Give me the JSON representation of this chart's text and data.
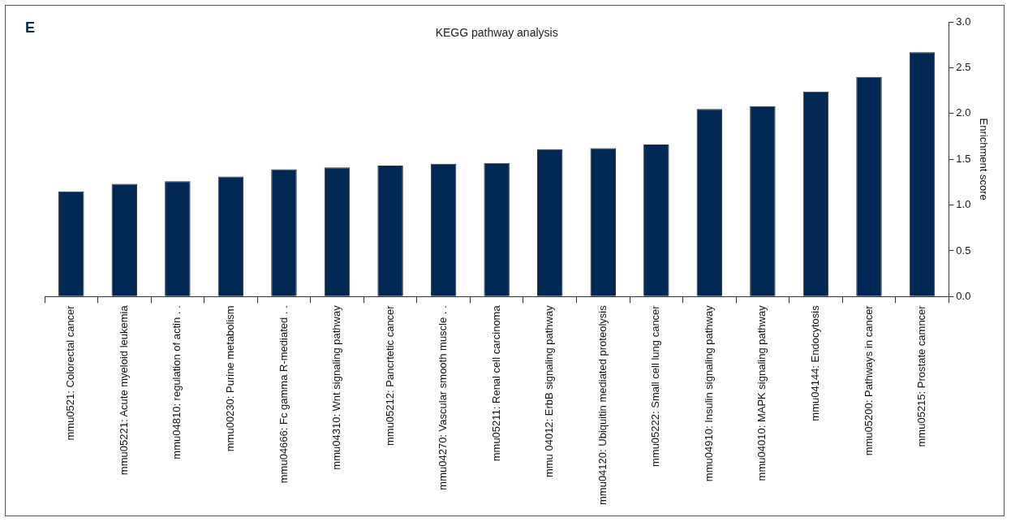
{
  "chart_data": {
    "type": "bar",
    "title": "KEGG pathway analysis",
    "ylabel": "Enrichment score",
    "annotations": [
      "E"
    ],
    "categories": [
      "mmu0521: Colorectal cancer",
      "mmu05221: Acute myeloid leukemia",
      "mmu04810: regulation of actin . .",
      "mmu00230: Purine metabolism",
      "mmu04666: Fc gamma R-mediated . .",
      "mmu04310: Wnt signaling pathway",
      "mmu05212: Pancrtetic cancer",
      "mmu04270: Vascular smooth muscle . .",
      "mmu05211: Renal cell carcinoma",
      "mmu 04012: ErbB signaling pathway",
      "mmu04120: Ubiquitin mediated proteolysis",
      "mmu05222: Small cell lung cancer",
      "mmu04910: Insulin signaling pathway",
      "mmu04010: MAPK signaling pathway",
      "mmu04144: Endocytosis",
      "mmu05200: Pathways in cancer",
      "mmu05215: Prostate camncer"
    ],
    "values": [
      1.15,
      1.23,
      1.26,
      1.31,
      1.39,
      1.41,
      1.43,
      1.45,
      1.46,
      1.61,
      1.62,
      1.66,
      2.05,
      2.08,
      2.24,
      2.4,
      2.67
    ],
    "color": "#002855",
    "ylim": [
      0,
      3
    ],
    "yticks": [
      {
        "value": 0,
        "label": "0.0"
      },
      {
        "value": 0.5,
        "label": "0.5"
      },
      {
        "value": 1,
        "label": "1.0"
      },
      {
        "value": 1.5,
        "label": "1.5"
      },
      {
        "value": 2,
        "label": "2.0"
      },
      {
        "value": 2.5,
        "label": "2.5"
      },
      {
        "value": 3,
        "label": "3.0"
      }
    ],
    "grid": false,
    "legend": false
  }
}
